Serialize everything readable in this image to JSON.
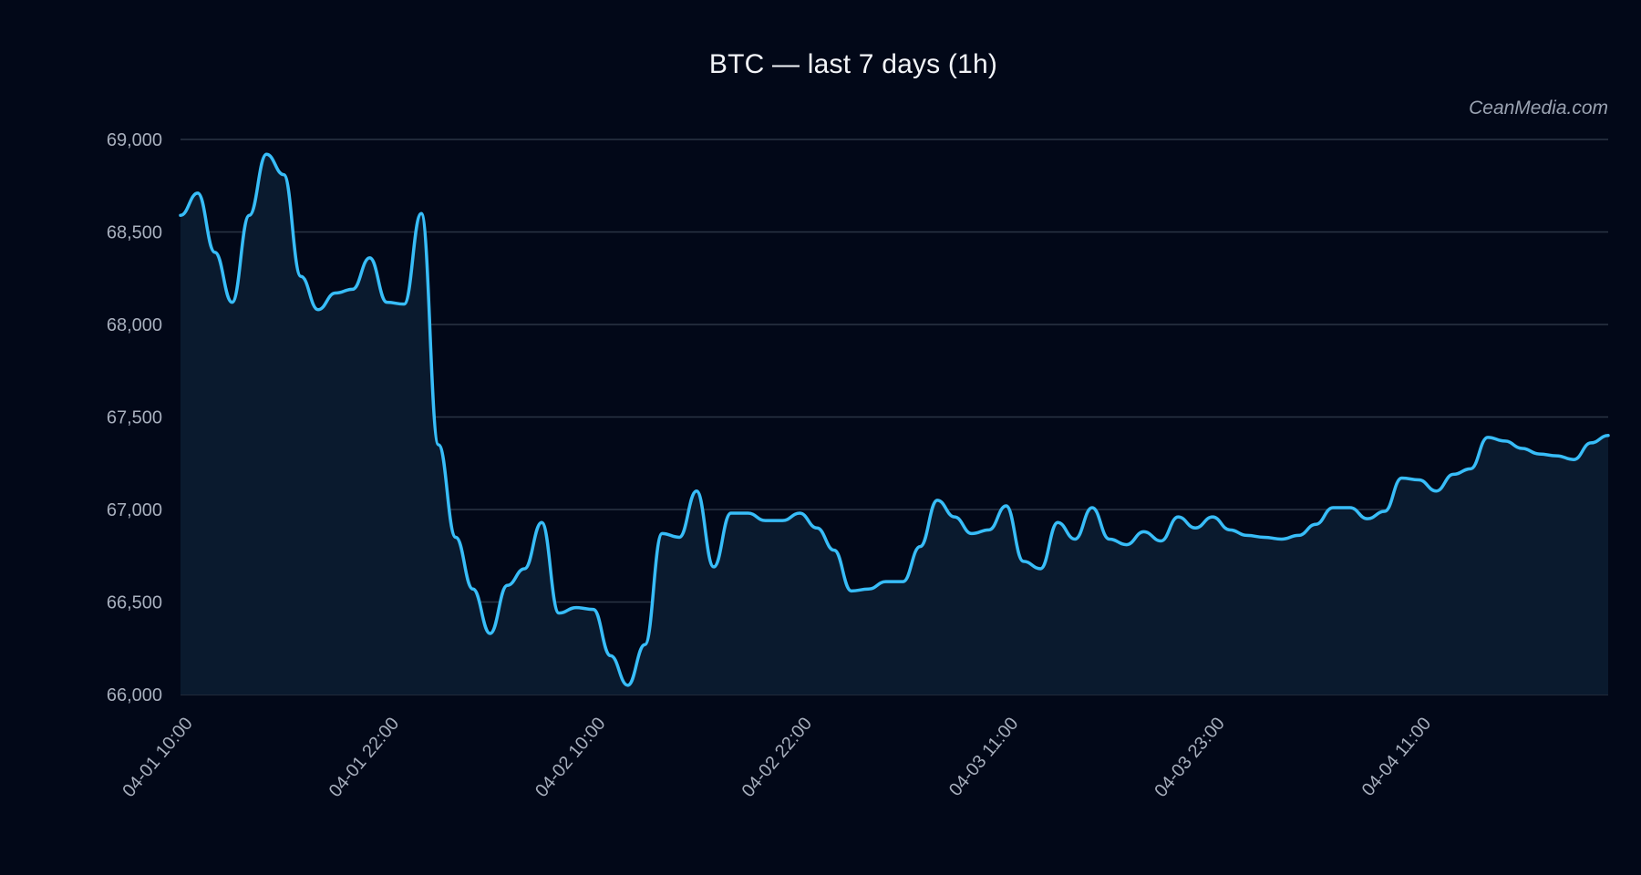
{
  "chart_data": {
    "type": "area",
    "title": "BTC — last 7 days (1h)",
    "watermark": "CeanMedia.com",
    "xlabel": "",
    "ylabel": "",
    "ylim": [
      66000,
      69000
    ],
    "y_ticks": [
      66000,
      66500,
      67000,
      67500,
      68000,
      68500,
      69000
    ],
    "y_tick_labels": [
      "66,000",
      "66,500",
      "67,000",
      "67,500",
      "68,000",
      "68,500",
      "69,000"
    ],
    "x_ticks": [
      {
        "label": "04-01 10:00",
        "index": 0
      },
      {
        "label": "04-01 22:00",
        "index": 12
      },
      {
        "label": "04-02 10:00",
        "index": 24
      },
      {
        "label": "04-02 22:00",
        "index": 36
      },
      {
        "label": "04-03 11:00",
        "index": 48
      },
      {
        "label": "04-03 23:00",
        "index": 60
      },
      {
        "label": "04-04 11:00",
        "index": 72
      }
    ],
    "grid": true,
    "legend": "none",
    "series": [
      {
        "color": "#38bdf8",
        "fill": "#0a1a2e",
        "values": [
          68590,
          68710,
          68390,
          68120,
          68590,
          68920,
          68810,
          68260,
          68080,
          68170,
          68190,
          68360,
          68120,
          68110,
          68600,
          67350,
          66850,
          66570,
          66330,
          66590,
          66680,
          66930,
          66440,
          66470,
          66460,
          66210,
          66050,
          66270,
          66870,
          66850,
          67100,
          66690,
          66980,
          66980,
          66940,
          66940,
          66980,
          66900,
          66780,
          66560,
          66570,
          66610,
          66610,
          66800,
          67050,
          66960,
          66870,
          66890,
          67020,
          66720,
          66680,
          66930,
          66840,
          67010,
          66840,
          66810,
          66880,
          66830,
          66960,
          66900,
          66960,
          66890,
          66860,
          66850,
          66840,
          66860,
          66920,
          67010,
          67010,
          66950,
          66990,
          67170,
          67160,
          67100,
          67190,
          67220,
          67390,
          67370,
          67330,
          67300,
          67290,
          67270,
          67360,
          67400
        ]
      }
    ]
  }
}
